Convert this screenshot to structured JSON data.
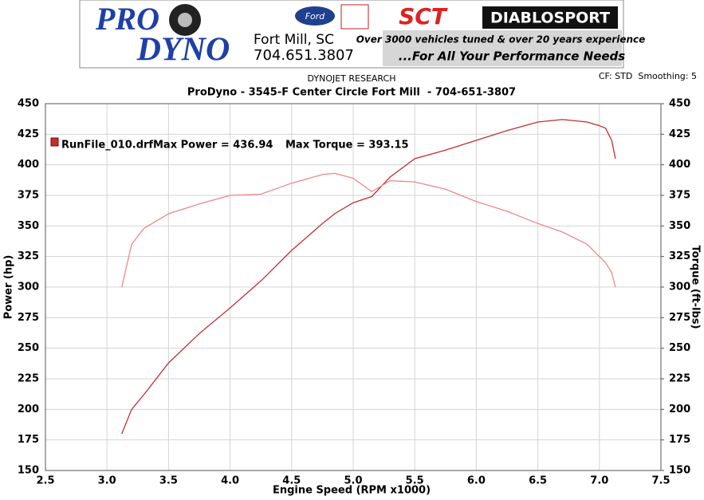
{
  "banner": {
    "brand_top": "PRO",
    "brand_bottom": "DYNO",
    "location": "Fort Mill, SC",
    "phone": "704.651.3807",
    "logo_ford": "Ford",
    "logo_sct": "SCT",
    "logo_diablo": "DIABLOSPORT",
    "tagline": "Over 3000 vehicles tuned & over 20 years experience",
    "slogan": "...For All Your Performance Needs"
  },
  "chart_data": {
    "type": "line",
    "header": "DYNOJET RESEARCH",
    "settings": "CF: STD  Smoothing: 5",
    "title": "ProDyno - 3545-F Center Circle Fort Mill  - 704-651-3807",
    "xlabel": "Engine Speed (RPM x1000)",
    "ylabel": "Power (hp)",
    "y2label": "Torque (ft-lbs)",
    "annotations": [
      "Max Power = 436.94",
      "Max Torque = 393.15"
    ],
    "x": [
      3.12,
      3.2,
      3.3,
      3.5,
      3.75,
      4.0,
      4.25,
      4.5,
      4.75,
      4.85,
      5.0,
      5.15,
      5.3,
      5.5,
      5.75,
      6.0,
      6.25,
      6.5,
      6.7,
      6.9,
      7.0,
      7.05,
      7.1,
      7.13
    ],
    "series": [
      {
        "name": "RunFile_010.drf",
        "color": "#c0302c",
        "values": [
          180,
          200,
          212,
          238,
          262,
          283,
          305,
          330,
          352,
          360,
          369,
          374,
          390,
          405,
          412,
          420,
          428,
          435,
          437,
          435,
          432,
          430,
          420,
          405
        ]
      },
      {
        "color": "#e88a88",
        "axis": "y2",
        "values": [
          300,
          335,
          348,
          360,
          368,
          375,
          376,
          385,
          392,
          393,
          389,
          378,
          387,
          386,
          380,
          370,
          362,
          352,
          345,
          335,
          325,
          320,
          312,
          300
        ]
      }
    ],
    "xlim": [
      2.5,
      7.5
    ],
    "xticks": [
      2.5,
      {
        "value": 3,
        "label": "3.0"
      },
      3.5,
      {
        "value": 4,
        "label": "4.0"
      },
      4.5,
      {
        "value": 5,
        "label": "5.0"
      },
      5.5,
      {
        "value": 6,
        "label": "6.0"
      },
      6.5,
      {
        "value": 7,
        "label": "7.0"
      },
      7.5
    ],
    "ylim": [
      150,
      450
    ],
    "yticks": [
      150,
      175,
      200,
      225,
      250,
      275,
      300,
      325,
      350,
      375,
      400,
      425,
      450
    ],
    "y2lim": [
      150,
      450
    ],
    "y2ticks": [
      150,
      175,
      200,
      225,
      250,
      275,
      300,
      325,
      350,
      375,
      400,
      425,
      450
    ],
    "grid": true
  }
}
